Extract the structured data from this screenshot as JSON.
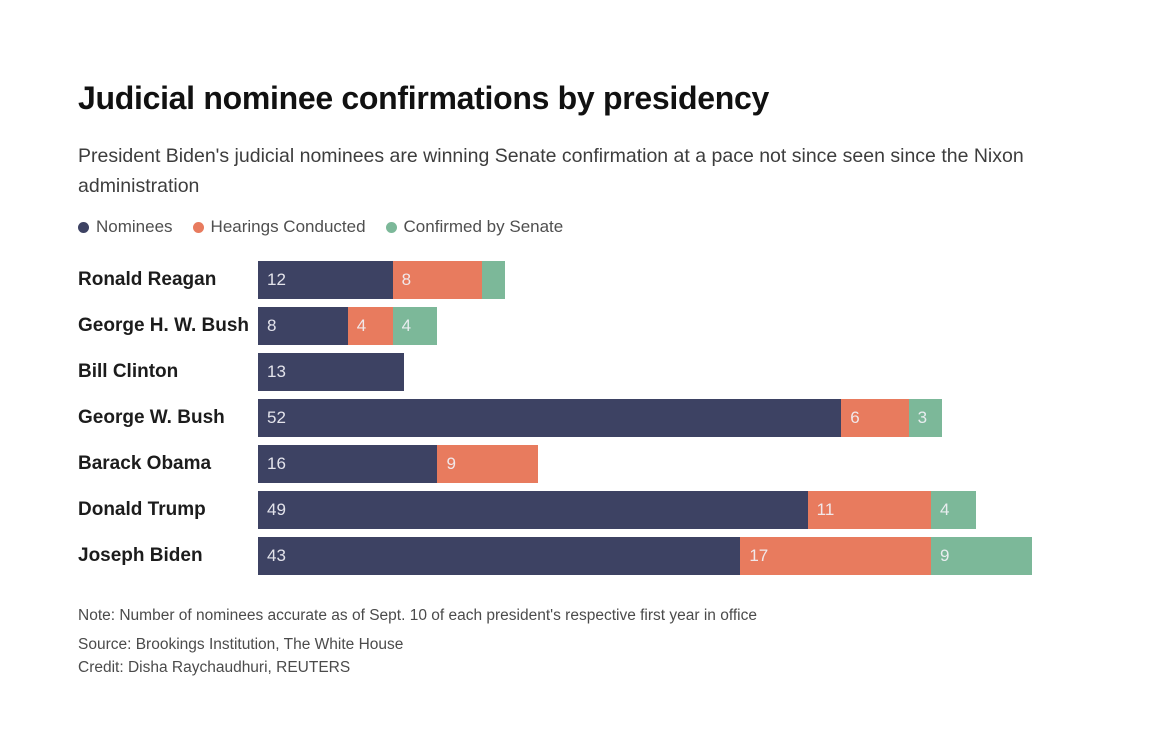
{
  "header": {
    "title": "Judicial nominee confirmations by presidency",
    "subtitle": "President Biden's judicial nominees are winning Senate confirmation at a pace not since seen since the Nixon administration"
  },
  "chart_data": {
    "type": "bar",
    "orientation": "horizontal",
    "stacked": true,
    "title": "Judicial nominee confirmations by presidency",
    "categories": [
      "Ronald Reagan",
      "George H. W. Bush",
      "Bill Clinton",
      "George W. Bush",
      "Barack Obama",
      "Donald Trump",
      "Joseph Biden"
    ],
    "series": [
      {
        "name": "Nominees",
        "color": "#3d4263",
        "values": [
          12,
          8,
          13,
          52,
          16,
          49,
          43
        ]
      },
      {
        "name": "Hearings Conducted",
        "color": "#e87b5e",
        "values": [
          8,
          4,
          0,
          6,
          9,
          11,
          17
        ]
      },
      {
        "name": "Confirmed by Senate",
        "color": "#7cb899",
        "values": [
          2,
          4,
          0,
          3,
          0,
          4,
          9
        ]
      }
    ],
    "xlim": [
      0,
      69
    ],
    "legend_position": "top",
    "grid": false,
    "axis_ticks": "none",
    "data_label_rule": "segment value printed at left edge of segment; values under 3 are unlabeled (Reagan confirmed segment ~2 shown without label)"
  },
  "footer": {
    "note": "Note: Number of nominees accurate as of Sept. 10 of each president's respective first year in office",
    "source": "Source: Brookings Institution, The White House",
    "credit": "Credit: Disha Raychaudhuri, REUTERS"
  },
  "colors": {
    "nominees": "#3d4263",
    "hearings": "#e87b5e",
    "confirmed": "#7cb899",
    "background": "#ffffff",
    "title_text": "#111111",
    "subtitle_text": "#3d3d3d",
    "legend_text": "#4f4f4f",
    "category_text": "#1c1c1c",
    "bar_value_text": "#f1f1f6",
    "footer_text": "#4b4b4b"
  }
}
